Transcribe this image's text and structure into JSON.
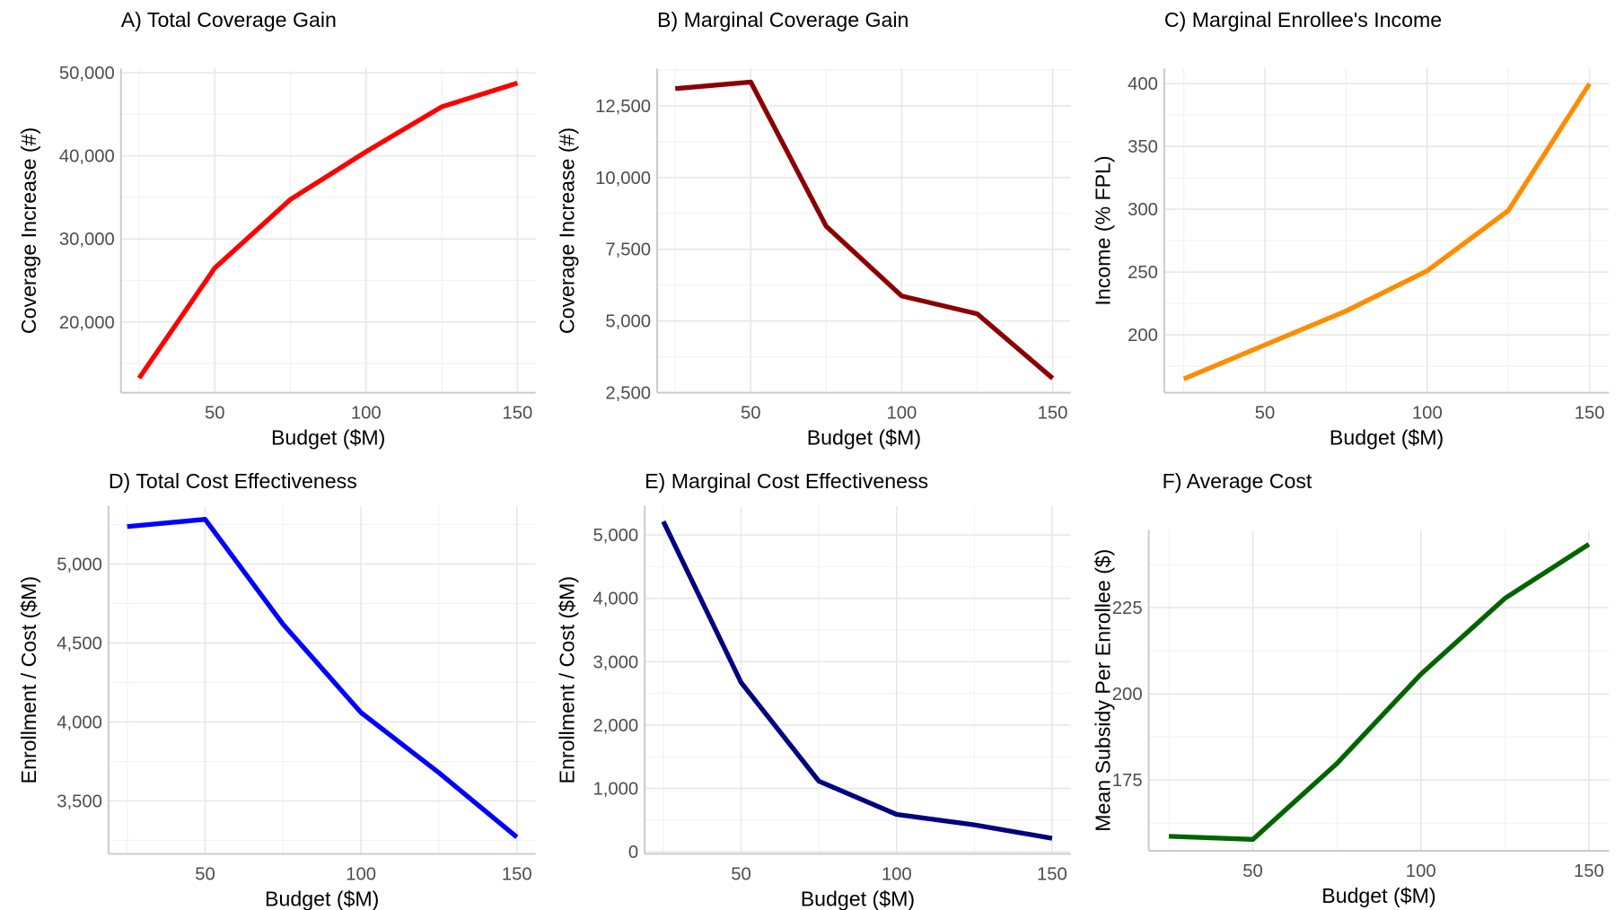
{
  "chart_data": [
    {
      "type": "line",
      "title": "A) Total Coverage Gain",
      "xlabel": "Budget ($M)",
      "ylabel": "Coverage Increase (#)",
      "x": [
        25,
        50,
        75,
        100,
        125,
        150
      ],
      "series": [
        {
          "values": [
            13250,
            26500,
            34750,
            40500,
            45900,
            48750
          ],
          "color": "#ff0000"
        }
      ],
      "xlim": [
        19,
        156
      ],
      "ylim": [
        11500,
        50500
      ],
      "xticks": [
        50,
        100,
        150
      ],
      "xtick_labels": [
        "50",
        "100",
        "150"
      ],
      "yticks": [
        20000,
        30000,
        40000,
        50000
      ],
      "ytick_labels": [
        "20,000",
        "30,000",
        "40,000",
        "50,000"
      ],
      "grid": true
    },
    {
      "type": "line",
      "title": "B) Marginal Coverage Gain",
      "xlabel": "Budget ($M)",
      "ylabel": "Coverage Increase (#)",
      "x": [
        25,
        50,
        75,
        100,
        125,
        150
      ],
      "series": [
        {
          "values": [
            13100,
            13330,
            8300,
            5870,
            5250,
            3000
          ],
          "color": "#8b0000"
        }
      ],
      "xlim": [
        19,
        156
      ],
      "ylim": [
        2500,
        13800
      ],
      "xticks": [
        50,
        100,
        150
      ],
      "xtick_labels": [
        "50",
        "100",
        "150"
      ],
      "yticks": [
        2500,
        5000,
        7500,
        10000,
        12500
      ],
      "ytick_labels": [
        "2,500",
        "5,000",
        "7,500",
        "10,000",
        "12,500"
      ],
      "grid": true
    },
    {
      "type": "line",
      "title": "C) Marginal Enrollee's Income",
      "xlabel": "Budget ($M)",
      "ylabel": "Income (% FPL)",
      "x": [
        25,
        50,
        75,
        100,
        125,
        150
      ],
      "series": [
        {
          "values": [
            165,
            192,
            219,
            251,
            299,
            400
          ],
          "color": "#ff8c00"
        }
      ],
      "xlim": [
        19,
        156
      ],
      "ylim": [
        154,
        412
      ],
      "xticks": [
        50,
        100,
        150
      ],
      "xtick_labels": [
        "50",
        "100",
        "150"
      ],
      "yticks": [
        200,
        250,
        300,
        350,
        400
      ],
      "ytick_labels": [
        "200",
        "250",
        "300",
        "350",
        "400"
      ],
      "grid": true
    },
    {
      "type": "line",
      "title": "D) Total Cost Effectiveness",
      "xlabel": "Budget ($M)",
      "ylabel": "Enrollment / Cost ($M)",
      "x": [
        25,
        50,
        75,
        100,
        125,
        150
      ],
      "series": [
        {
          "values": [
            5237,
            5283,
            4618,
            4059,
            3678,
            3270
          ],
          "color": "#0000ff"
        }
      ],
      "xlim": [
        19,
        156
      ],
      "ylim": [
        3164,
        5368
      ],
      "xticks": [
        50,
        100,
        150
      ],
      "xtick_labels": [
        "50",
        "100",
        "150"
      ],
      "yticks": [
        3500,
        4000,
        4500,
        5000
      ],
      "ytick_labels": [
        "3,500",
        "4,000",
        "4,500",
        "5,000"
      ],
      "grid": true
    },
    {
      "type": "line",
      "title": "E) Marginal Cost Effectiveness",
      "xlabel": "Budget ($M)",
      "ylabel": "Enrollment / Cost ($M)",
      "x": [
        25,
        50,
        75,
        100,
        125,
        150
      ],
      "series": [
        {
          "values": [
            5213,
            2672,
            1115,
            590,
            426,
            213
          ],
          "color": "#000080"
        }
      ],
      "xlim": [
        19,
        156
      ],
      "ylim": [
        -33,
        5459
      ],
      "xticks": [
        50,
        100,
        150
      ],
      "xtick_labels": [
        "50",
        "100",
        "150"
      ],
      "yticks": [
        0,
        1000,
        2000,
        3000,
        4000,
        5000
      ],
      "ytick_labels": [
        "0",
        "1,000",
        "2,000",
        "3,000",
        "4,000",
        "5,000"
      ],
      "grid": true
    },
    {
      "type": "line",
      "title": "F) Average Cost",
      "xlabel": "Budget ($M)",
      "ylabel": "Mean Subsidy Per Enrollee ($)",
      "x": [
        25,
        50,
        75,
        100,
        125,
        150
      ],
      "series": [
        {
          "values": [
            158.7,
            157.8,
            179.8,
            205.7,
            227.7,
            243.4
          ],
          "color": "#006400"
        }
      ],
      "xlim": [
        19,
        156
      ],
      "ylim": [
        154.5,
        247.6
      ],
      "xticks": [
        50,
        100,
        150
      ],
      "xtick_labels": [
        "50",
        "100",
        "150"
      ],
      "yticks": [
        175,
        200,
        225
      ],
      "ytick_labels": [
        "175",
        "200",
        "225"
      ],
      "grid": true
    }
  ]
}
